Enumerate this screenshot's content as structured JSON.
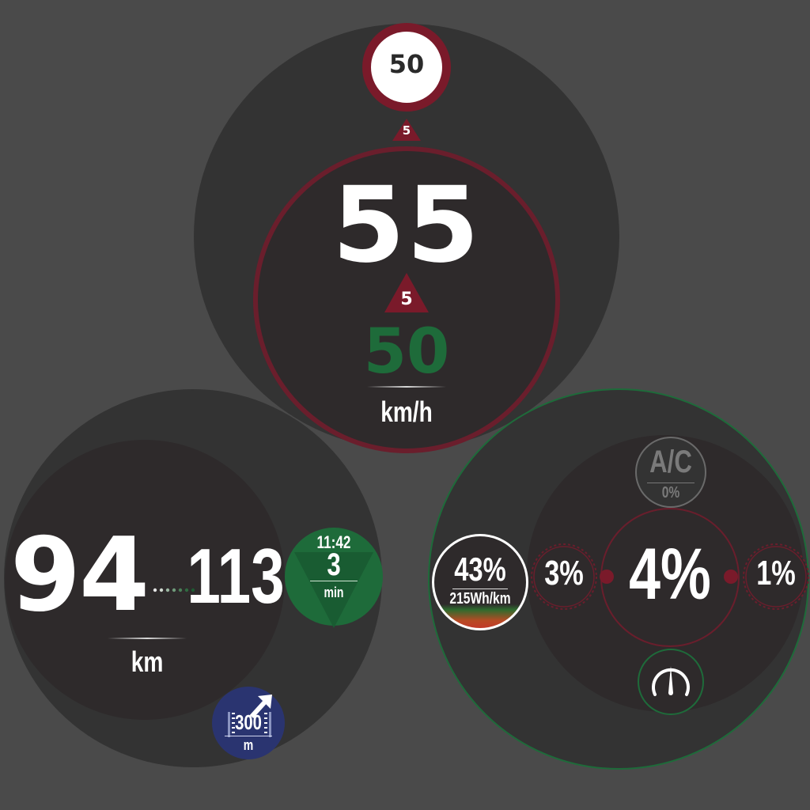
{
  "colors": {
    "background": "#4a4a4a",
    "dial_outer": "#333333",
    "dial_inner": "#2e2a2b",
    "warning_red": "#7a1a2a",
    "success_green": "#1e6b3a",
    "nav_blue": "#2a3470"
  },
  "speed": {
    "limit_sign_value": "50",
    "small_triangle_value": "5",
    "current_speed": "55",
    "over_triangle_value": "5",
    "target_speed": "50",
    "unit": "km/h"
  },
  "range": {
    "primary_value": "94",
    "secondary_value": "113",
    "unit": "km",
    "eta_time": "11:42",
    "eta_minutes": "3",
    "eta_unit": "min",
    "nav_distance": "300",
    "nav_unit": "m",
    "nav_icon": "turn-right-arrow-icon"
  },
  "energy": {
    "battery_percent": "43%",
    "consumption": "215Wh/km",
    "ac_label": "A/C",
    "ac_percent": "0%",
    "main_percent": "4%",
    "left_percent": "3%",
    "right_percent": "1%",
    "gauge_icon": "gauge-icon"
  }
}
